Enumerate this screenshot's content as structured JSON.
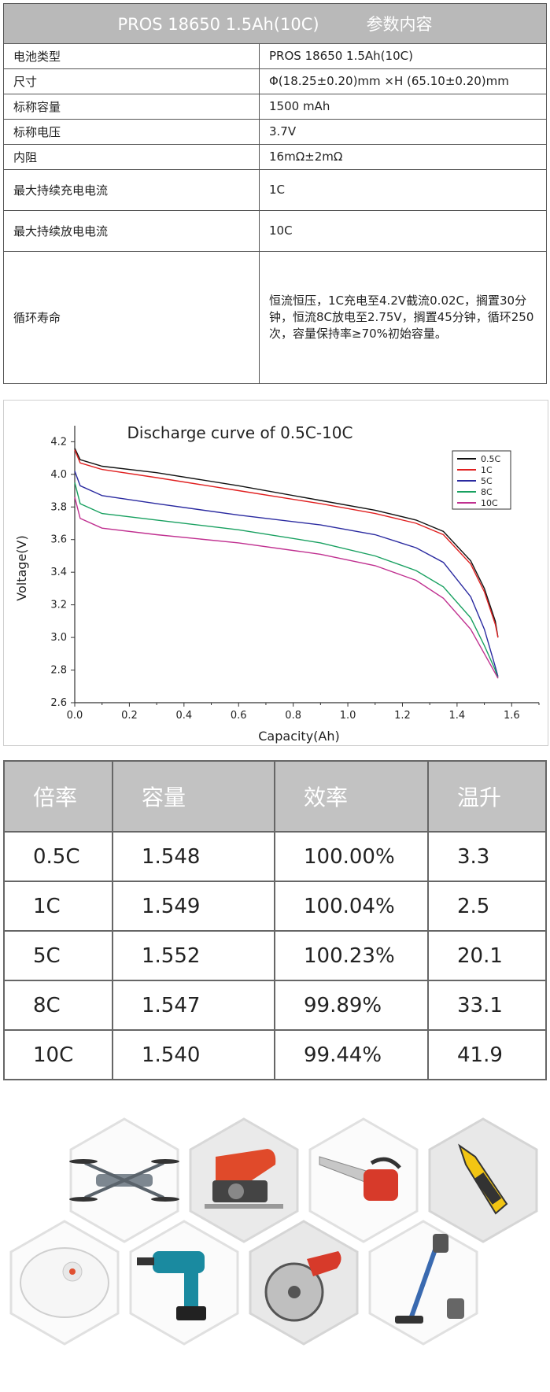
{
  "spec_table": {
    "header_left": "PROS 18650 1.5Ah(10C)",
    "header_right": "参数内容",
    "rows": [
      {
        "key": "电池类型",
        "value": "PROS 18650 1.5Ah(10C)"
      },
      {
        "key": "尺寸",
        "value": "Φ(18.25±0.20)mm ×H (65.10±0.20)mm"
      },
      {
        "key": "标称容量",
        "value": "1500 mAh"
      },
      {
        "key": "标称电压",
        "value": "3.7V"
      },
      {
        "key": "内阻",
        "value": "16mΩ±2mΩ"
      },
      {
        "key": "最大持续充电电流",
        "value": "1C"
      },
      {
        "key": "最大持续放电电流",
        "value": "10C"
      },
      {
        "key": "循环寿命",
        "value": "恒流恒压，1C充电至4.2V截流0.02C，搁置30分钟，恒流8C放电至2.75V，搁置45分钟，循环250次，容量保持率≥70%初始容量。"
      }
    ]
  },
  "chart_data": {
    "type": "line",
    "title": "Discharge curve of 0.5C-10C",
    "xlabel": "Capacity(Ah)",
    "ylabel": "Voltage(V)",
    "xlim": [
      0.0,
      1.7
    ],
    "ylim": [
      2.6,
      4.25
    ],
    "x_ticks": [
      "0.0",
      "0.2",
      "0.4",
      "0.6",
      "0.8",
      "1.0",
      "1.2",
      "1.4",
      "1.6"
    ],
    "y_ticks": [
      "2.6",
      "2.8",
      "3.0",
      "3.2",
      "3.4",
      "3.6",
      "3.8",
      "4.0",
      "4.2"
    ],
    "legend_position": "top-right",
    "series": [
      {
        "name": "0.5C",
        "color": "#111111",
        "x": [
          0,
          0.02,
          0.1,
          0.3,
          0.6,
          0.9,
          1.1,
          1.25,
          1.35,
          1.45,
          1.5,
          1.54,
          1.55
        ],
        "y": [
          4.16,
          4.09,
          4.05,
          4.01,
          3.93,
          3.84,
          3.78,
          3.72,
          3.65,
          3.47,
          3.3,
          3.1,
          3.0
        ]
      },
      {
        "name": "1C",
        "color": "#e02020",
        "x": [
          0,
          0.02,
          0.1,
          0.3,
          0.6,
          0.9,
          1.1,
          1.25,
          1.35,
          1.45,
          1.5,
          1.54,
          1.55
        ],
        "y": [
          4.15,
          4.07,
          4.03,
          3.98,
          3.9,
          3.82,
          3.76,
          3.7,
          3.63,
          3.45,
          3.28,
          3.08,
          3.0
        ]
      },
      {
        "name": "5C",
        "color": "#2a2aa0",
        "x": [
          0,
          0.02,
          0.1,
          0.3,
          0.6,
          0.9,
          1.1,
          1.25,
          1.35,
          1.45,
          1.5,
          1.54,
          1.55
        ],
        "y": [
          4.02,
          3.93,
          3.87,
          3.82,
          3.75,
          3.69,
          3.63,
          3.55,
          3.46,
          3.25,
          3.05,
          2.82,
          2.76
        ]
      },
      {
        "name": "8C",
        "color": "#18a060",
        "x": [
          0,
          0.02,
          0.1,
          0.3,
          0.6,
          0.9,
          1.1,
          1.25,
          1.35,
          1.45,
          1.5,
          1.54,
          1.55
        ],
        "y": [
          3.95,
          3.82,
          3.76,
          3.72,
          3.66,
          3.58,
          3.5,
          3.41,
          3.31,
          3.12,
          2.95,
          2.8,
          2.75
        ]
      },
      {
        "name": "10C",
        "color": "#c03090",
        "x": [
          0,
          0.02,
          0.1,
          0.3,
          0.6,
          0.9,
          1.1,
          1.25,
          1.35,
          1.45,
          1.5,
          1.54,
          1.55
        ],
        "y": [
          3.86,
          3.73,
          3.67,
          3.63,
          3.58,
          3.51,
          3.44,
          3.35,
          3.24,
          3.05,
          2.9,
          2.78,
          2.75
        ]
      }
    ]
  },
  "rate_table": {
    "headers": [
      "倍率",
      "容量",
      "效率",
      "温升"
    ],
    "rows": [
      [
        "0.5C",
        "1.548",
        "100.00%",
        "3.3"
      ],
      [
        "1C",
        "1.549",
        "100.04%",
        "2.5"
      ],
      [
        "5C",
        "1.552",
        "100.23%",
        "20.1"
      ],
      [
        "8C",
        "1.547",
        "99.89%",
        "33.1"
      ],
      [
        "10C",
        "1.540",
        "99.44%",
        "41.9"
      ]
    ]
  },
  "gallery": {
    "items": [
      {
        "icon": "drone-icon"
      },
      {
        "icon": "jigsaw-icon"
      },
      {
        "icon": "chainsaw-icon"
      },
      {
        "icon": "nibbler-icon"
      },
      {
        "icon": "robot-vacuum-icon"
      },
      {
        "icon": "drill-icon"
      },
      {
        "icon": "circular-saw-icon"
      },
      {
        "icon": "stick-vacuum-icon"
      }
    ]
  }
}
